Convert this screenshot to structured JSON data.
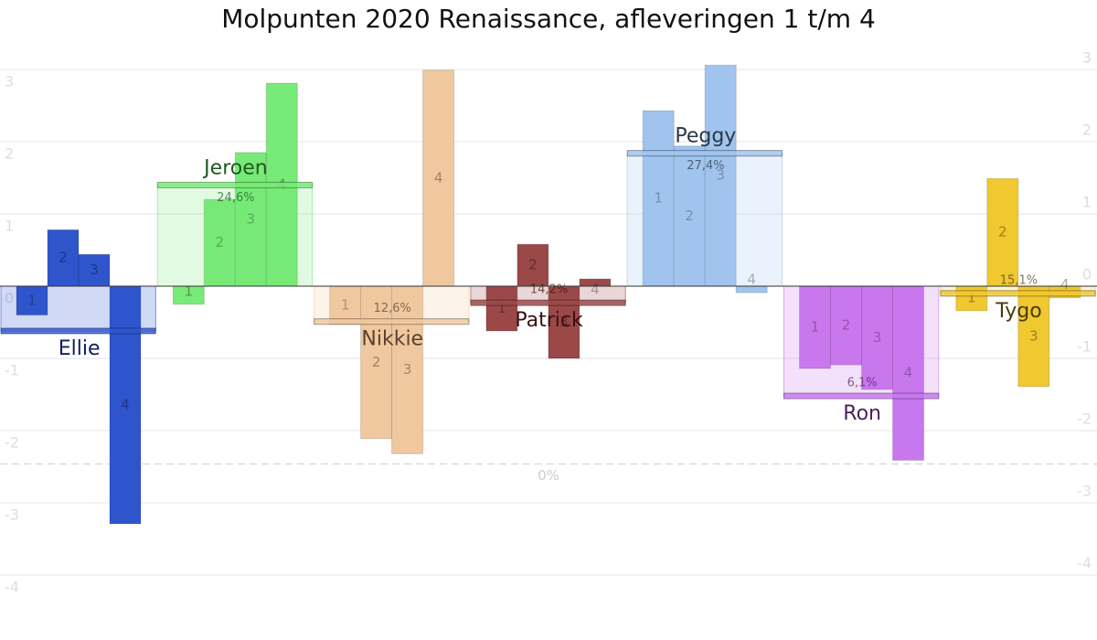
{
  "chart_data": {
    "type": "bar",
    "title": "Molpunten 2020 Renaissance, afleveringen 1 t/m 4",
    "episodes": [
      "1",
      "2",
      "3",
      "4"
    ],
    "ylim": [
      -4.4,
      3.5
    ],
    "yticks": [
      3,
      2,
      1,
      0,
      -1,
      -2,
      -3,
      -4
    ],
    "y2lim": [
      -4.55,
      3.35
    ],
    "y2ticks": [
      3,
      2,
      1,
      0,
      -1,
      -2,
      -3,
      -4
    ],
    "grid": true,
    "annotations": [
      {
        "text": "0%",
        "y": -2.46
      }
    ],
    "series": [
      {
        "name": "Ellie",
        "color": "#2f55cc",
        "label_color": "#0d2060",
        "values": [
          -0.4,
          0.78,
          0.44,
          -3.29
        ],
        "average": -0.62
      },
      {
        "name": "Jeroen",
        "color": "#78ea78",
        "label_color": "#1e5a1e",
        "values": [
          -0.25,
          1.2,
          1.85,
          2.81
        ],
        "average": 1.4,
        "value_label": {
          "value": 24.6,
          "label": "24,6%"
        }
      },
      {
        "name": "Nikkie",
        "color": "#f0c8a0",
        "label_color": "#5a4030",
        "values": [
          -0.53,
          -2.11,
          -2.32,
          2.99
        ],
        "average": -0.49,
        "value_label": {
          "value": 12.6,
          "label": "12,6%"
        }
      },
      {
        "name": "Patrick",
        "color": "#9a4848",
        "label_color": "#3a1010",
        "values": [
          -0.62,
          0.58,
          -1.0,
          0.1
        ],
        "average": -0.23,
        "value_label": {
          "value": 14.2,
          "label": "14,2%"
        }
      },
      {
        "name": "Peggy",
        "color": "#a0c4ee",
        "label_color": "#283848",
        "values": [
          2.43,
          1.94,
          3.06,
          -0.09
        ],
        "average": 1.84,
        "value_label": {
          "value": 27.4,
          "label": "27,4%"
        }
      },
      {
        "name": "Ron",
        "color": "#c878ee",
        "label_color": "#4a2060",
        "values": [
          -1.14,
          -1.09,
          -1.43,
          -2.41
        ],
        "average": -1.52,
        "value_label": {
          "value": 6.1,
          "label": "6,1%"
        }
      },
      {
        "name": "Tygo",
        "color": "#f0c830",
        "label_color": "#4a3a10",
        "values": [
          -0.34,
          1.49,
          -1.39,
          -0.16
        ],
        "average": -0.1,
        "value_label": {
          "value": 15.1,
          "label": "15,1%"
        }
      }
    ]
  }
}
